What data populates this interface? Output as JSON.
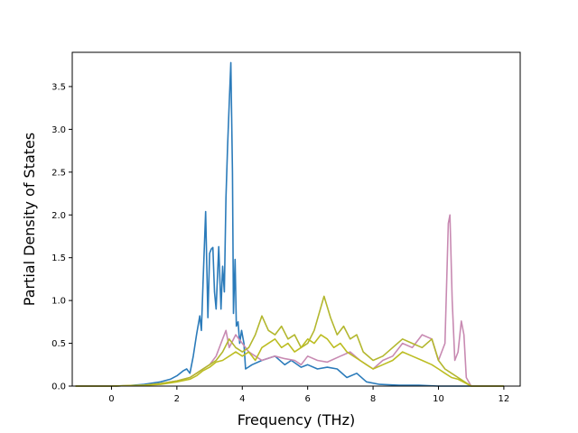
{
  "chart_data": {
    "type": "line",
    "xlabel": "Frequency (THz)",
    "ylabel": "Partial Density of States",
    "xlim": [
      -1.2,
      12.5
    ],
    "ylim": [
      0,
      3.9
    ],
    "xticks": [
      0,
      2,
      4,
      6,
      8,
      10,
      12
    ],
    "yticks": [
      0.0,
      0.5,
      1.0,
      1.5,
      2.0,
      2.5,
      3.0,
      3.5
    ],
    "xtick_labels": [
      "0",
      "2",
      "4",
      "6",
      "8",
      "10",
      "12"
    ],
    "ytick_labels": [
      "0.0",
      "0.5",
      "1.0",
      "1.5",
      "2.0",
      "2.5",
      "3.0",
      "3.5"
    ],
    "grid": false,
    "series": [
      {
        "color": "#2b7bba",
        "points": [
          [
            -1.1,
            0
          ],
          [
            0,
            0
          ],
          [
            0.5,
            0.005
          ],
          [
            1.0,
            0.02
          ],
          [
            1.5,
            0.05
          ],
          [
            1.8,
            0.08
          ],
          [
            2.0,
            0.12
          ],
          [
            2.2,
            0.18
          ],
          [
            2.3,
            0.2
          ],
          [
            2.4,
            0.15
          ],
          [
            2.5,
            0.35
          ],
          [
            2.6,
            0.6
          ],
          [
            2.7,
            0.82
          ],
          [
            2.75,
            0.65
          ],
          [
            2.8,
            1.2
          ],
          [
            2.88,
            2.04
          ],
          [
            2.95,
            0.8
          ],
          [
            3.0,
            1.55
          ],
          [
            3.05,
            1.6
          ],
          [
            3.1,
            1.62
          ],
          [
            3.15,
            1.1
          ],
          [
            3.2,
            0.9
          ],
          [
            3.28,
            1.63
          ],
          [
            3.35,
            0.9
          ],
          [
            3.4,
            1.4
          ],
          [
            3.45,
            1.1
          ],
          [
            3.5,
            2.2
          ],
          [
            3.55,
            2.8
          ],
          [
            3.6,
            3.3
          ],
          [
            3.65,
            3.78
          ],
          [
            3.7,
            2.5
          ],
          [
            3.73,
            0.85
          ],
          [
            3.78,
            1.48
          ],
          [
            3.82,
            0.7
          ],
          [
            3.87,
            0.75
          ],
          [
            3.92,
            0.5
          ],
          [
            3.98,
            0.65
          ],
          [
            4.05,
            0.5
          ],
          [
            4.1,
            0.2
          ],
          [
            4.3,
            0.25
          ],
          [
            4.6,
            0.3
          ],
          [
            5.0,
            0.35
          ],
          [
            5.3,
            0.25
          ],
          [
            5.5,
            0.3
          ],
          [
            5.8,
            0.22
          ],
          [
            6.0,
            0.25
          ],
          [
            6.3,
            0.2
          ],
          [
            6.6,
            0.22
          ],
          [
            6.9,
            0.2
          ],
          [
            7.2,
            0.1
          ],
          [
            7.5,
            0.15
          ],
          [
            7.8,
            0.05
          ],
          [
            8.2,
            0.02
          ],
          [
            8.8,
            0.01
          ],
          [
            9.4,
            0.01
          ],
          [
            10.0,
            0
          ],
          [
            12.0,
            0
          ]
        ]
      },
      {
        "color": "#c88ab2",
        "points": [
          [
            -1.1,
            0
          ],
          [
            0,
            0
          ],
          [
            0.5,
            0.005
          ],
          [
            1.0,
            0.01
          ],
          [
            1.5,
            0.03
          ],
          [
            2.0,
            0.06
          ],
          [
            2.4,
            0.1
          ],
          [
            2.6,
            0.15
          ],
          [
            2.8,
            0.2
          ],
          [
            3.0,
            0.25
          ],
          [
            3.2,
            0.35
          ],
          [
            3.4,
            0.55
          ],
          [
            3.5,
            0.65
          ],
          [
            3.6,
            0.45
          ],
          [
            3.8,
            0.6
          ],
          [
            4.0,
            0.5
          ],
          [
            4.2,
            0.4
          ],
          [
            4.4,
            0.35
          ],
          [
            4.6,
            0.3
          ],
          [
            5.0,
            0.35
          ],
          [
            5.3,
            0.32
          ],
          [
            5.6,
            0.3
          ],
          [
            5.8,
            0.25
          ],
          [
            6.0,
            0.35
          ],
          [
            6.3,
            0.3
          ],
          [
            6.6,
            0.28
          ],
          [
            7.0,
            0.35
          ],
          [
            7.3,
            0.4
          ],
          [
            7.6,
            0.3
          ],
          [
            8.0,
            0.2
          ],
          [
            8.3,
            0.3
          ],
          [
            8.6,
            0.35
          ],
          [
            8.9,
            0.5
          ],
          [
            9.2,
            0.45
          ],
          [
            9.5,
            0.6
          ],
          [
            9.8,
            0.55
          ],
          [
            10.0,
            0.3
          ],
          [
            10.2,
            0.5
          ],
          [
            10.3,
            1.9
          ],
          [
            10.35,
            2.0
          ],
          [
            10.42,
            1.0
          ],
          [
            10.5,
            0.3
          ],
          [
            10.6,
            0.4
          ],
          [
            10.7,
            0.76
          ],
          [
            10.78,
            0.6
          ],
          [
            10.85,
            0.1
          ],
          [
            11.0,
            0
          ],
          [
            12.0,
            0
          ]
        ]
      },
      {
        "color": "#b3b72e",
        "points": [
          [
            -1.1,
            0
          ],
          [
            0,
            0
          ],
          [
            0.5,
            0.005
          ],
          [
            1.0,
            0.01
          ],
          [
            1.5,
            0.03
          ],
          [
            2.0,
            0.06
          ],
          [
            2.4,
            0.1
          ],
          [
            2.6,
            0.15
          ],
          [
            2.8,
            0.2
          ],
          [
            3.0,
            0.25
          ],
          [
            3.2,
            0.3
          ],
          [
            3.4,
            0.4
          ],
          [
            3.6,
            0.55
          ],
          [
            3.8,
            0.45
          ],
          [
            4.0,
            0.4
          ],
          [
            4.2,
            0.45
          ],
          [
            4.4,
            0.6
          ],
          [
            4.6,
            0.82
          ],
          [
            4.8,
            0.65
          ],
          [
            5.0,
            0.6
          ],
          [
            5.2,
            0.7
          ],
          [
            5.4,
            0.55
          ],
          [
            5.6,
            0.6
          ],
          [
            5.8,
            0.45
          ],
          [
            6.0,
            0.5
          ],
          [
            6.2,
            0.65
          ],
          [
            6.5,
            1.05
          ],
          [
            6.7,
            0.8
          ],
          [
            6.9,
            0.6
          ],
          [
            7.1,
            0.7
          ],
          [
            7.3,
            0.55
          ],
          [
            7.5,
            0.6
          ],
          [
            7.7,
            0.4
          ],
          [
            8.0,
            0.3
          ],
          [
            8.3,
            0.35
          ],
          [
            8.6,
            0.45
          ],
          [
            8.9,
            0.55
          ],
          [
            9.2,
            0.5
          ],
          [
            9.5,
            0.45
          ],
          [
            9.8,
            0.55
          ],
          [
            10.0,
            0.3
          ],
          [
            10.2,
            0.2
          ],
          [
            10.4,
            0.15
          ],
          [
            10.6,
            0.1
          ],
          [
            10.8,
            0.05
          ],
          [
            11.0,
            0
          ],
          [
            12.0,
            0
          ]
        ]
      },
      {
        "color": "#bcbd22",
        "points": [
          [
            -1.1,
            0
          ],
          [
            0,
            0
          ],
          [
            0.5,
            0.005
          ],
          [
            1.0,
            0.01
          ],
          [
            1.5,
            0.02
          ],
          [
            2.0,
            0.05
          ],
          [
            2.4,
            0.08
          ],
          [
            2.6,
            0.12
          ],
          [
            2.8,
            0.18
          ],
          [
            3.0,
            0.22
          ],
          [
            3.2,
            0.28
          ],
          [
            3.4,
            0.3
          ],
          [
            3.6,
            0.35
          ],
          [
            3.8,
            0.4
          ],
          [
            4.0,
            0.35
          ],
          [
            4.2,
            0.4
          ],
          [
            4.4,
            0.3
          ],
          [
            4.6,
            0.45
          ],
          [
            4.8,
            0.5
          ],
          [
            5.0,
            0.55
          ],
          [
            5.2,
            0.45
          ],
          [
            5.4,
            0.5
          ],
          [
            5.6,
            0.4
          ],
          [
            5.8,
            0.45
          ],
          [
            6.0,
            0.55
          ],
          [
            6.2,
            0.5
          ],
          [
            6.4,
            0.6
          ],
          [
            6.6,
            0.55
          ],
          [
            6.8,
            0.45
          ],
          [
            7.0,
            0.5
          ],
          [
            7.2,
            0.4
          ],
          [
            7.4,
            0.35
          ],
          [
            7.6,
            0.3
          ],
          [
            7.8,
            0.25
          ],
          [
            8.0,
            0.2
          ],
          [
            8.3,
            0.25
          ],
          [
            8.6,
            0.3
          ],
          [
            8.9,
            0.4
          ],
          [
            9.2,
            0.35
          ],
          [
            9.5,
            0.3
          ],
          [
            9.8,
            0.25
          ],
          [
            10.0,
            0.2
          ],
          [
            10.2,
            0.15
          ],
          [
            10.4,
            0.1
          ],
          [
            10.6,
            0.08
          ],
          [
            10.8,
            0.04
          ],
          [
            11.0,
            0
          ],
          [
            12.0,
            0
          ]
        ]
      }
    ]
  }
}
